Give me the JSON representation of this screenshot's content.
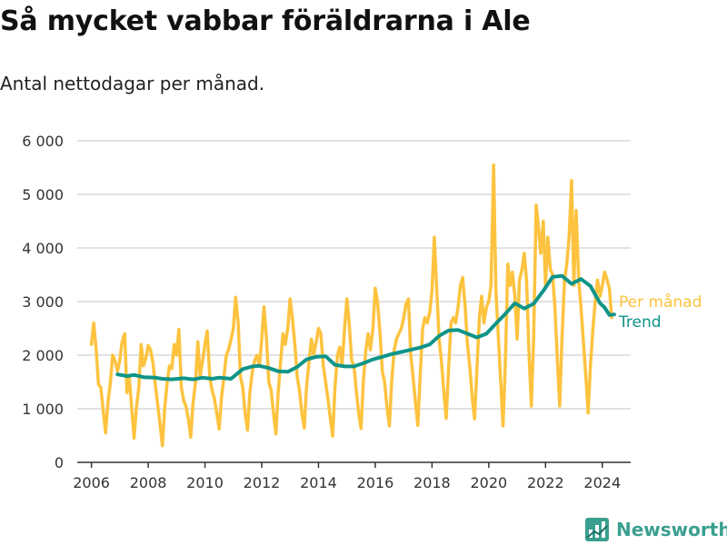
{
  "header": {
    "title": "Så mycket vabbar föräldrarna i Ale",
    "subtitle": "Antal nettodagar per månad."
  },
  "brand": {
    "name": "Newsworthy",
    "icon": "newsworthy-logo-icon"
  },
  "colors": {
    "monthly": "#fdc33f",
    "trend": "#0e9488",
    "grid": "#d9d9d9",
    "axis": "#333333"
  },
  "chart_data": {
    "type": "line",
    "title": "Så mycket vabbar föräldrarna i Ale",
    "subtitle": "Antal nettodagar per månad.",
    "xlabel": "",
    "ylabel": "",
    "xlim": [
      2005.5,
      2025.0
    ],
    "ylim": [
      0,
      6000
    ],
    "grid": true,
    "legend_placement": "right, inline at line ends",
    "x_ticks": [
      2006,
      2008,
      2010,
      2012,
      2014,
      2016,
      2018,
      2020,
      2022,
      2024
    ],
    "x_tick_labels": [
      "2006",
      "2008",
      "2010",
      "2012",
      "2014",
      "2016",
      "2018",
      "2020",
      "2022",
      "2024"
    ],
    "y_ticks": [
      0,
      1000,
      2000,
      3000,
      4000,
      5000,
      6000
    ],
    "y_tick_labels": [
      "0",
      "1 000",
      "2 000",
      "3 000",
      "4 000",
      "5 000",
      "6 000"
    ],
    "series": [
      {
        "name": "Per månad",
        "color": "#fdc33f",
        "points": [
          [
            2006.0,
            2200
          ],
          [
            2006.08,
            2600
          ],
          [
            2006.17,
            2100
          ],
          [
            2006.25,
            1450
          ],
          [
            2006.33,
            1400
          ],
          [
            2006.42,
            950
          ],
          [
            2006.5,
            550
          ],
          [
            2006.58,
            1100
          ],
          [
            2006.67,
            1500
          ],
          [
            2006.75,
            2000
          ],
          [
            2006.83,
            1900
          ],
          [
            2006.92,
            1700
          ],
          [
            2007.0,
            1900
          ],
          [
            2007.08,
            2250
          ],
          [
            2007.17,
            2400
          ],
          [
            2007.25,
            1300
          ],
          [
            2007.33,
            1600
          ],
          [
            2007.42,
            1000
          ],
          [
            2007.5,
            450
          ],
          [
            2007.58,
            1000
          ],
          [
            2007.67,
            1400
          ],
          [
            2007.75,
            2200
          ],
          [
            2007.83,
            1800
          ],
          [
            2007.92,
            1950
          ],
          [
            2008.0,
            2180
          ],
          [
            2008.08,
            2100
          ],
          [
            2008.17,
            1850
          ],
          [
            2008.25,
            1450
          ],
          [
            2008.33,
            1100
          ],
          [
            2008.42,
            700
          ],
          [
            2008.5,
            310
          ],
          [
            2008.58,
            1000
          ],
          [
            2008.67,
            1500
          ],
          [
            2008.75,
            1800
          ],
          [
            2008.83,
            1750
          ],
          [
            2008.92,
            2200
          ],
          [
            2009.0,
            2000
          ],
          [
            2009.08,
            2480
          ],
          [
            2009.17,
            1400
          ],
          [
            2009.25,
            1150
          ],
          [
            2009.33,
            1050
          ],
          [
            2009.42,
            800
          ],
          [
            2009.5,
            470
          ],
          [
            2009.58,
            1100
          ],
          [
            2009.67,
            1500
          ],
          [
            2009.75,
            2250
          ],
          [
            2009.83,
            1600
          ],
          [
            2009.92,
            1900
          ],
          [
            2010.0,
            2200
          ],
          [
            2010.08,
            2450
          ],
          [
            2010.17,
            1600
          ],
          [
            2010.25,
            1350
          ],
          [
            2010.33,
            1200
          ],
          [
            2010.42,
            900
          ],
          [
            2010.5,
            620
          ],
          [
            2010.58,
            1200
          ],
          [
            2010.67,
            1600
          ],
          [
            2010.75,
            2000
          ],
          [
            2010.83,
            2100
          ],
          [
            2010.92,
            2300
          ],
          [
            2011.0,
            2500
          ],
          [
            2011.08,
            3080
          ],
          [
            2011.17,
            2600
          ],
          [
            2011.25,
            1600
          ],
          [
            2011.33,
            1400
          ],
          [
            2011.42,
            900
          ],
          [
            2011.5,
            600
          ],
          [
            2011.58,
            1300
          ],
          [
            2011.67,
            1700
          ],
          [
            2011.75,
            1900
          ],
          [
            2011.83,
            2000
          ],
          [
            2011.92,
            1800
          ],
          [
            2012.0,
            2300
          ],
          [
            2012.08,
            2900
          ],
          [
            2012.17,
            2300
          ],
          [
            2012.25,
            1500
          ],
          [
            2012.33,
            1350
          ],
          [
            2012.42,
            900
          ],
          [
            2012.5,
            530
          ],
          [
            2012.58,
            1300
          ],
          [
            2012.67,
            1900
          ],
          [
            2012.75,
            2400
          ],
          [
            2012.83,
            2200
          ],
          [
            2012.92,
            2500
          ],
          [
            2013.0,
            3050
          ],
          [
            2013.08,
            2700
          ],
          [
            2013.17,
            2200
          ],
          [
            2013.25,
            1600
          ],
          [
            2013.33,
            1350
          ],
          [
            2013.42,
            900
          ],
          [
            2013.5,
            640
          ],
          [
            2013.58,
            1400
          ],
          [
            2013.67,
            1900
          ],
          [
            2013.75,
            2300
          ],
          [
            2013.83,
            2000
          ],
          [
            2013.92,
            2250
          ],
          [
            2014.0,
            2500
          ],
          [
            2014.08,
            2400
          ],
          [
            2014.17,
            1800
          ],
          [
            2014.25,
            1500
          ],
          [
            2014.33,
            1200
          ],
          [
            2014.42,
            800
          ],
          [
            2014.5,
            490
          ],
          [
            2014.58,
            1400
          ],
          [
            2014.67,
            2000
          ],
          [
            2014.75,
            2150
          ],
          [
            2014.83,
            1800
          ],
          [
            2014.92,
            2500
          ],
          [
            2015.0,
            3050
          ],
          [
            2015.08,
            2600
          ],
          [
            2015.17,
            1900
          ],
          [
            2015.25,
            1800
          ],
          [
            2015.33,
            1350
          ],
          [
            2015.42,
            900
          ],
          [
            2015.5,
            630
          ],
          [
            2015.58,
            1500
          ],
          [
            2015.67,
            2100
          ],
          [
            2015.75,
            2400
          ],
          [
            2015.83,
            2100
          ],
          [
            2015.92,
            2500
          ],
          [
            2016.0,
            3250
          ],
          [
            2016.08,
            3000
          ],
          [
            2016.17,
            2400
          ],
          [
            2016.25,
            1700
          ],
          [
            2016.33,
            1500
          ],
          [
            2016.42,
            1000
          ],
          [
            2016.5,
            680
          ],
          [
            2016.58,
            1500
          ],
          [
            2016.67,
            2100
          ],
          [
            2016.75,
            2300
          ],
          [
            2016.83,
            2400
          ],
          [
            2016.92,
            2500
          ],
          [
            2017.0,
            2700
          ],
          [
            2017.08,
            2950
          ],
          [
            2017.17,
            3050
          ],
          [
            2017.25,
            2000
          ],
          [
            2017.33,
            1600
          ],
          [
            2017.42,
            1100
          ],
          [
            2017.5,
            690
          ],
          [
            2017.58,
            1600
          ],
          [
            2017.67,
            2500
          ],
          [
            2017.75,
            2700
          ],
          [
            2017.83,
            2600
          ],
          [
            2017.92,
            2800
          ],
          [
            2018.0,
            3200
          ],
          [
            2018.08,
            4200
          ],
          [
            2018.17,
            3200
          ],
          [
            2018.25,
            2300
          ],
          [
            2018.33,
            1900
          ],
          [
            2018.42,
            1300
          ],
          [
            2018.5,
            820
          ],
          [
            2018.58,
            1700
          ],
          [
            2018.67,
            2600
          ],
          [
            2018.75,
            2700
          ],
          [
            2018.83,
            2600
          ],
          [
            2018.92,
            2900
          ],
          [
            2019.0,
            3300
          ],
          [
            2019.08,
            3450
          ],
          [
            2019.17,
            2900
          ],
          [
            2019.25,
            2200
          ],
          [
            2019.33,
            1800
          ],
          [
            2019.42,
            1200
          ],
          [
            2019.5,
            810
          ],
          [
            2019.58,
            1700
          ],
          [
            2019.67,
            2700
          ],
          [
            2019.75,
            3100
          ],
          [
            2019.83,
            2600
          ],
          [
            2019.92,
            2900
          ],
          [
            2020.0,
            3000
          ],
          [
            2020.08,
            3300
          ],
          [
            2020.17,
            5550
          ],
          [
            2020.25,
            3200
          ],
          [
            2020.33,
            2400
          ],
          [
            2020.42,
            1500
          ],
          [
            2020.5,
            680
          ],
          [
            2020.58,
            1800
          ],
          [
            2020.67,
            3700
          ],
          [
            2020.75,
            3300
          ],
          [
            2020.83,
            3550
          ],
          [
            2020.92,
            3100
          ],
          [
            2021.0,
            2300
          ],
          [
            2021.08,
            3400
          ],
          [
            2021.17,
            3600
          ],
          [
            2021.25,
            3900
          ],
          [
            2021.33,
            3400
          ],
          [
            2021.42,
            2000
          ],
          [
            2021.5,
            1050
          ],
          [
            2021.58,
            2300
          ],
          [
            2021.67,
            4800
          ],
          [
            2021.75,
            4400
          ],
          [
            2021.83,
            3900
          ],
          [
            2021.92,
            4500
          ],
          [
            2022.0,
            3300
          ],
          [
            2022.08,
            4200
          ],
          [
            2022.17,
            3600
          ],
          [
            2022.25,
            3500
          ],
          [
            2022.33,
            2900
          ],
          [
            2022.42,
            1900
          ],
          [
            2022.5,
            1050
          ],
          [
            2022.58,
            2300
          ],
          [
            2022.67,
            3400
          ],
          [
            2022.75,
            3700
          ],
          [
            2022.83,
            4200
          ],
          [
            2022.92,
            5260
          ],
          [
            2023.0,
            3300
          ],
          [
            2023.08,
            4700
          ],
          [
            2023.17,
            3400
          ],
          [
            2023.25,
            2900
          ],
          [
            2023.33,
            2300
          ],
          [
            2023.42,
            1600
          ],
          [
            2023.5,
            920
          ],
          [
            2023.58,
            1800
          ],
          [
            2023.67,
            2500
          ],
          [
            2023.75,
            3000
          ],
          [
            2023.83,
            3400
          ],
          [
            2023.92,
            3100
          ],
          [
            2024.0,
            3300
          ],
          [
            2024.08,
            3550
          ],
          [
            2024.17,
            3400
          ],
          [
            2024.25,
            3250
          ],
          [
            2024.33,
            2700
          ]
        ]
      },
      {
        "name": "Trend",
        "color": "#0e9488",
        "points": [
          [
            2006.92,
            1640
          ],
          [
            2007.25,
            1610
          ],
          [
            2007.5,
            1630
          ],
          [
            2007.83,
            1590
          ],
          [
            2008.25,
            1580
          ],
          [
            2008.5,
            1560
          ],
          [
            2008.83,
            1550
          ],
          [
            2009.25,
            1570
          ],
          [
            2009.58,
            1550
          ],
          [
            2009.92,
            1580
          ],
          [
            2010.25,
            1560
          ],
          [
            2010.5,
            1580
          ],
          [
            2010.92,
            1560
          ],
          [
            2011.33,
            1740
          ],
          [
            2011.67,
            1790
          ],
          [
            2011.92,
            1800
          ],
          [
            2012.25,
            1760
          ],
          [
            2012.58,
            1700
          ],
          [
            2012.92,
            1690
          ],
          [
            2013.25,
            1780
          ],
          [
            2013.58,
            1920
          ],
          [
            2013.92,
            1970
          ],
          [
            2014.25,
            1980
          ],
          [
            2014.58,
            1820
          ],
          [
            2014.92,
            1790
          ],
          [
            2015.25,
            1790
          ],
          [
            2015.58,
            1850
          ],
          [
            2015.92,
            1920
          ],
          [
            2016.25,
            1970
          ],
          [
            2016.58,
            2020
          ],
          [
            2016.92,
            2060
          ],
          [
            2017.25,
            2100
          ],
          [
            2017.58,
            2140
          ],
          [
            2017.92,
            2200
          ],
          [
            2018.25,
            2360
          ],
          [
            2018.58,
            2460
          ],
          [
            2018.92,
            2470
          ],
          [
            2019.25,
            2400
          ],
          [
            2019.58,
            2330
          ],
          [
            2019.92,
            2400
          ],
          [
            2020.25,
            2590
          ],
          [
            2020.58,
            2770
          ],
          [
            2020.92,
            2970
          ],
          [
            2021.25,
            2870
          ],
          [
            2021.58,
            2960
          ],
          [
            2021.92,
            3200
          ],
          [
            2022.25,
            3460
          ],
          [
            2022.58,
            3480
          ],
          [
            2022.92,
            3330
          ],
          [
            2023.25,
            3420
          ],
          [
            2023.58,
            3290
          ],
          [
            2023.92,
            2970
          ],
          [
            2024.08,
            2890
          ],
          [
            2024.25,
            2750
          ],
          [
            2024.42,
            2760
          ]
        ]
      }
    ]
  }
}
